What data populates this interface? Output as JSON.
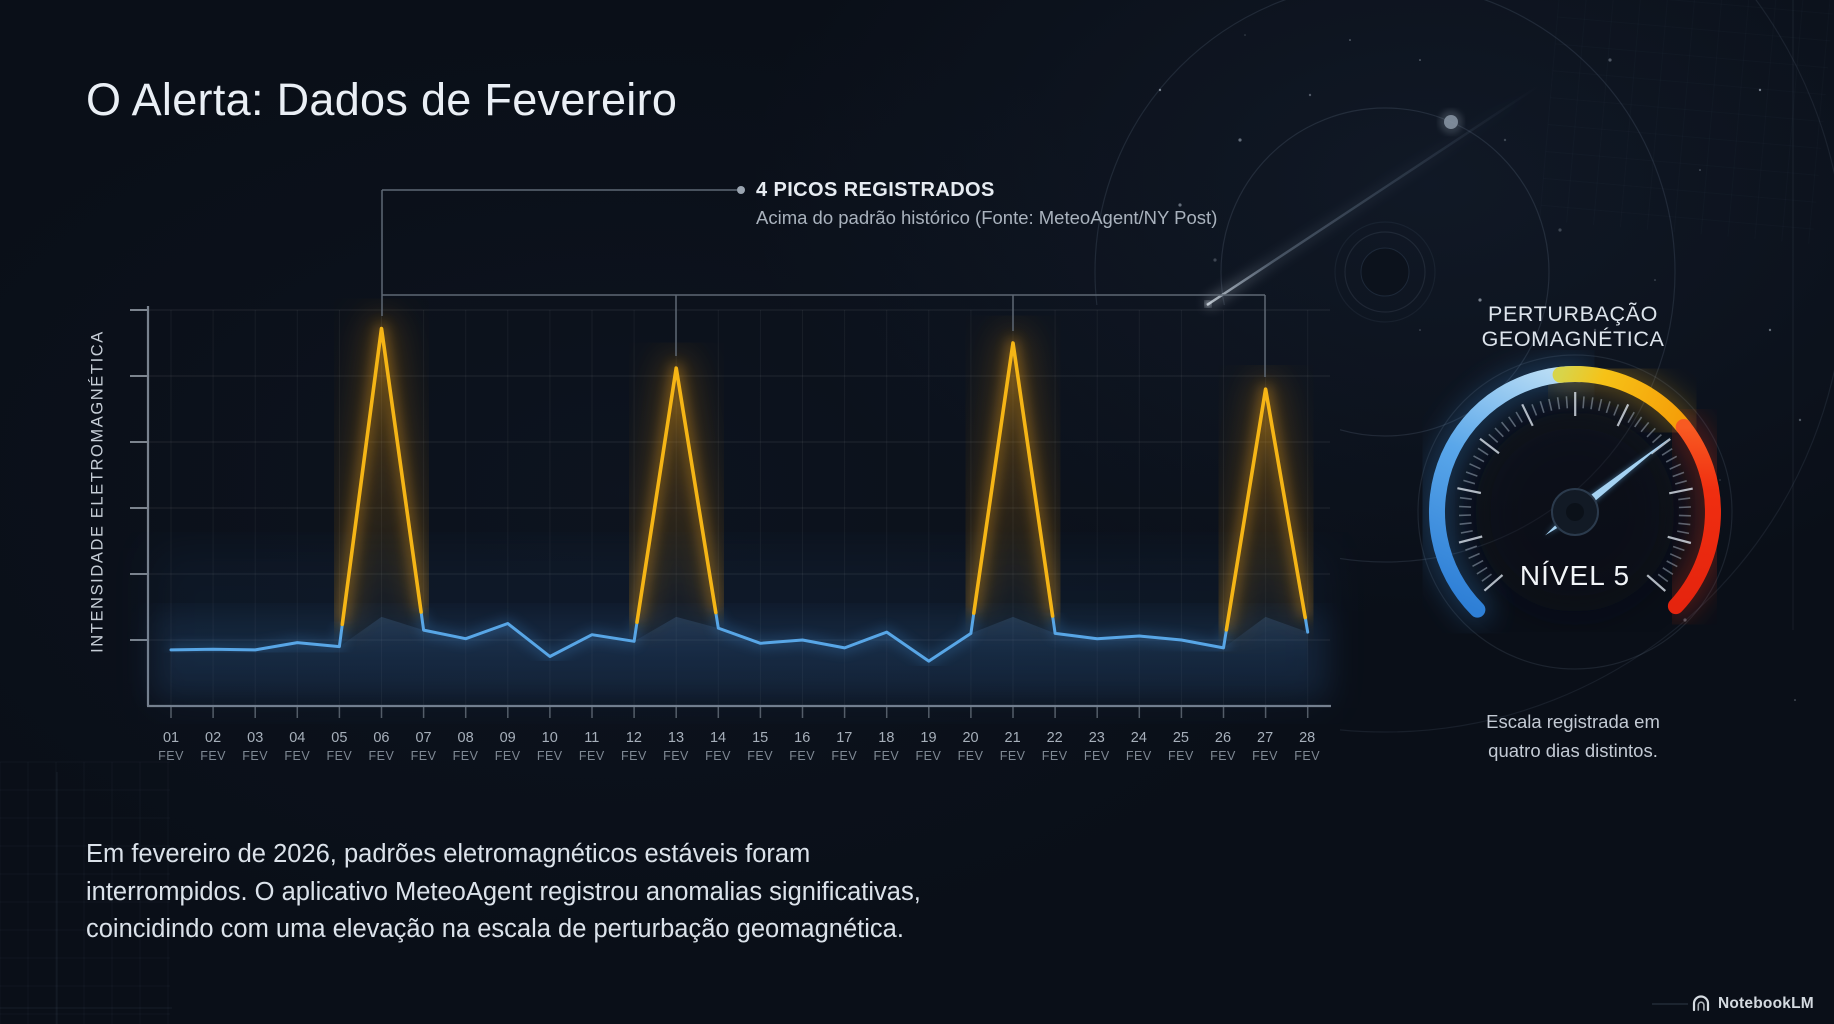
{
  "slide": {
    "title": "O Alerta: Dados de Fevereiro"
  },
  "annotation": {
    "title": "4 PICOS REGISTRADOS",
    "subtitle": "Acima do padrão histórico (Fonte: MeteoAgent/NY Post)"
  },
  "chart_data": {
    "type": "line",
    "ylabel": "INTENSIDADE ELETROMAGNÉTICA",
    "month_label": "FEV",
    "days": [
      "01",
      "02",
      "03",
      "04",
      "05",
      "06",
      "07",
      "08",
      "09",
      "10",
      "11",
      "12",
      "13",
      "14",
      "15",
      "16",
      "17",
      "18",
      "19",
      "20",
      "21",
      "22",
      "23",
      "24",
      "25",
      "26",
      "27",
      "28"
    ],
    "series": [
      {
        "name": "intensidade-eletromagnetica",
        "color": "#58a6e6",
        "values": [
          0.85,
          0.86,
          0.85,
          0.96,
          0.9,
          5.72,
          1.15,
          1.02,
          1.25,
          0.75,
          1.08,
          0.98,
          5.12,
          1.18,
          0.95,
          1.0,
          0.88,
          1.12,
          0.68,
          1.1,
          5.5,
          1.1,
          1.02,
          1.06,
          1.0,
          0.88,
          4.8,
          1.12
        ]
      }
    ],
    "peaks": {
      "days": [
        6,
        13,
        21,
        27
      ],
      "color": "#f5b516"
    },
    "ylim": [
      0,
      6
    ],
    "grid": "horizontal and vertical gridlines, no y tick labels",
    "legend": "none"
  },
  "gauge": {
    "title": "PERTURBAÇÃO GEOMAGNÉTICA",
    "level_label": "NÍVEL 5",
    "level_value": 5,
    "caption_lines": [
      "Escala registrada em",
      "quatro dias distintos."
    ],
    "colors": {
      "low": "#4da0e8",
      "mid": "#f5b516",
      "high": "#ee3512"
    }
  },
  "paragraph": {
    "lines": [
      "Em fevereiro de 2026, padrões eletromagnéticos estáveis foram",
      "interrompidos. O aplicativo MeteoAgent registrou anomalias significativas,",
      "coincidindo com uma elevação na escala de perturbação geomagnética."
    ]
  },
  "footer": {
    "brand": "NotebookLM"
  }
}
